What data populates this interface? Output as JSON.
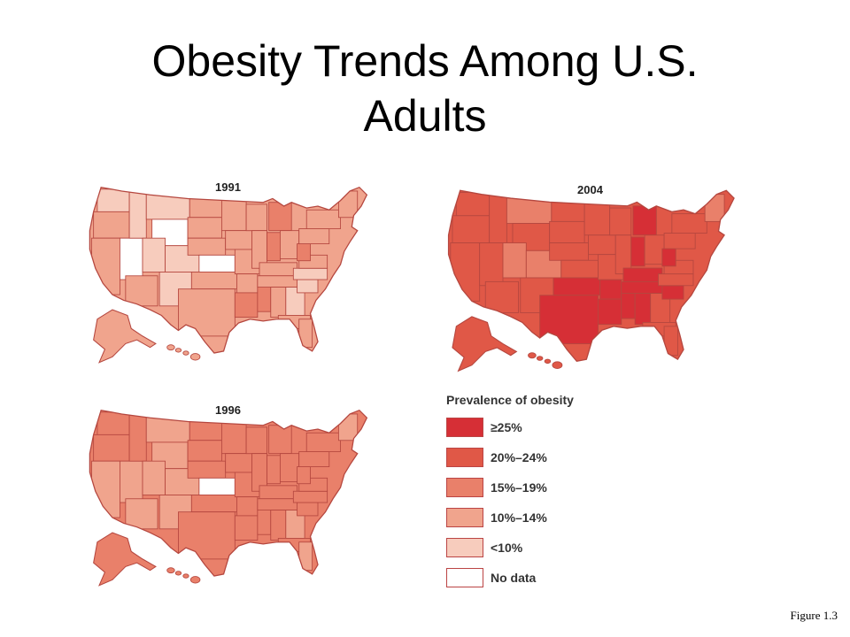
{
  "slide": {
    "title_line1": "Obesity Trends Among U.S.",
    "title_line2": "Adults",
    "figure_caption": "Figure 1.3"
  },
  "maps": [
    {
      "year": "1991",
      "land_color": "#efa68e",
      "dominant_category": "10%–14%"
    },
    {
      "year": "1996",
      "land_color": "#e9876f",
      "dominant_category": "15%–19%"
    },
    {
      "year": "2004",
      "land_color": "#dc5847",
      "dominant_category": "20%–24%"
    }
  ],
  "legend": {
    "title": "Prevalence of obesity",
    "items": [
      {
        "label": "≥25%",
        "color": "#d62f36"
      },
      {
        "label": "20%–24%",
        "color": "#e05847"
      },
      {
        "label": "15%–19%",
        "color": "#e9806a"
      },
      {
        "label": "10%–14%",
        "color": "#f0a48d"
      },
      {
        "label": "<10%",
        "color": "#f7ccbd"
      },
      {
        "label": "No data",
        "color": "#ffffff"
      }
    ]
  },
  "highlights": {
    "no_data": "#ffffff",
    "under10": "#f7ccbd",
    "r10_14": "#f0a48d",
    "r15_19": "#e9806a",
    "r20_24": "#e05847",
    "over25": "#d62f36",
    "border": "#b5473f"
  }
}
